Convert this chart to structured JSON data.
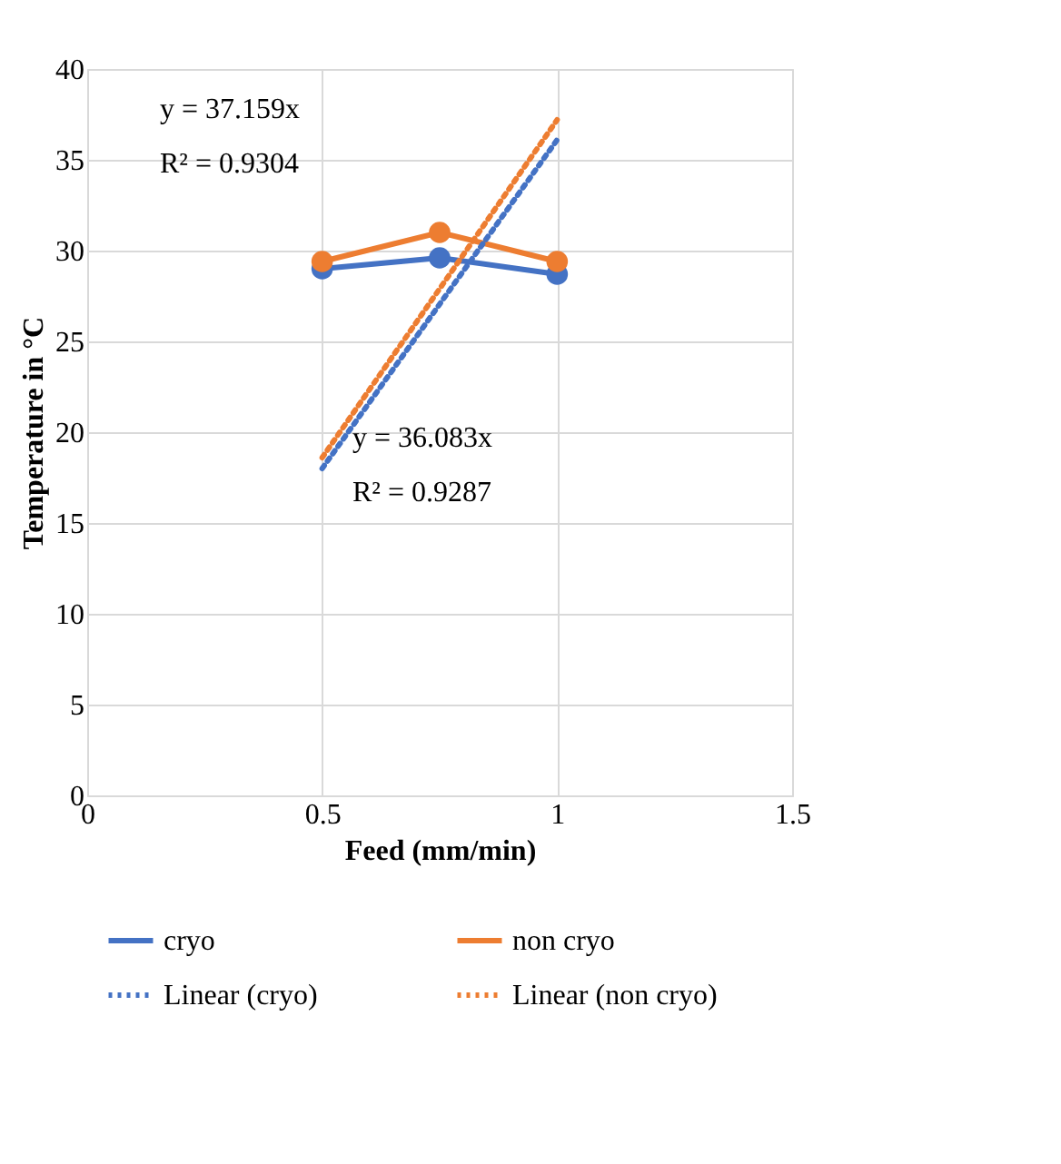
{
  "chart_data": {
    "type": "line",
    "xlabel": "Feed (mm/min)",
    "ylabel": "Temperature in °C",
    "xlim": [
      0,
      1.5
    ],
    "xticks": [
      0,
      0.5,
      1,
      1.5
    ],
    "ylim": [
      0,
      40
    ],
    "yticks": [
      0,
      5,
      10,
      15,
      20,
      25,
      30,
      35,
      40
    ],
    "grid": true,
    "legend": "bottom",
    "series": [
      {
        "name": "cryo",
        "color": "#4472c4",
        "x": [
          0.5,
          0.75,
          1
        ],
        "values": [
          29.0,
          29.6,
          28.7
        ],
        "marker": "circle",
        "line_style": "solid"
      },
      {
        "name": "non cryo",
        "color": "#ed7d31",
        "x": [
          0.5,
          0.75,
          1
        ],
        "values": [
          29.4,
          31.0,
          29.4
        ],
        "marker": "circle",
        "line_style": "solid"
      },
      {
        "name": "Linear (cryo)",
        "color": "#4472c4",
        "x": [
          0.5,
          1
        ],
        "values": [
          18.0,
          36.1
        ],
        "marker": "none",
        "line_style": "dotted"
      },
      {
        "name": "Linear (non cryo)",
        "color": "#ed7d31",
        "x": [
          0.5,
          1
        ],
        "values": [
          18.6,
          37.2
        ],
        "marker": "none",
        "line_style": "dotted"
      }
    ],
    "annotations": [
      "y = 37.159x",
      "R² = 0.9304",
      "y = 36.083x",
      "R² = 0.9287"
    ]
  }
}
